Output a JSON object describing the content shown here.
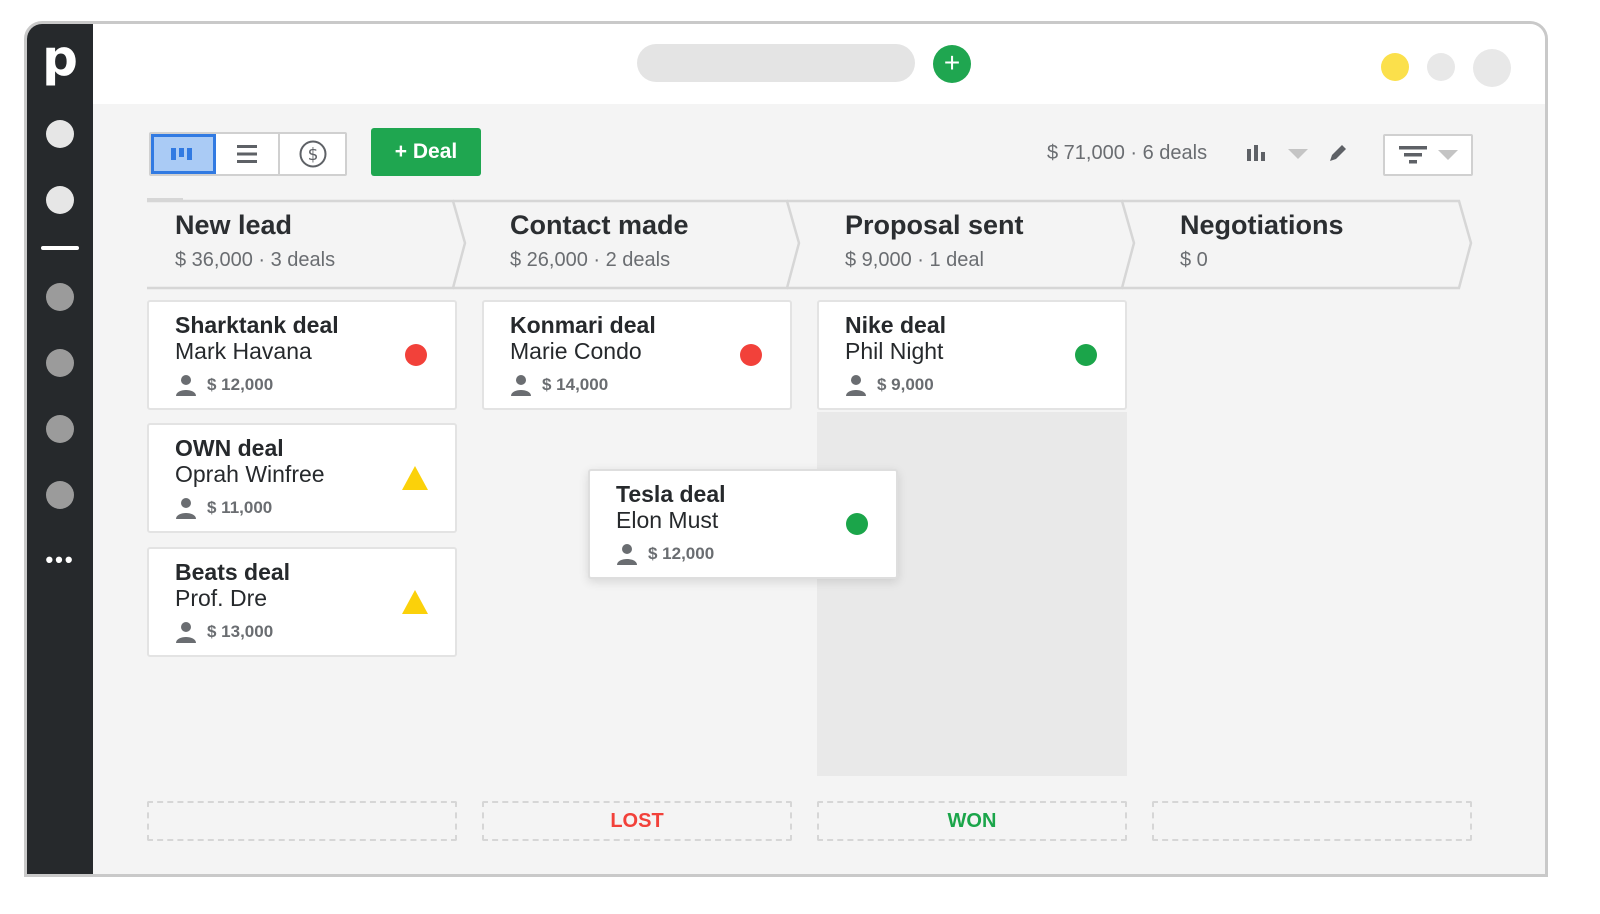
{
  "app": {
    "logo_letter": "p"
  },
  "sidebar": {
    "items": [
      "circle",
      "circle",
      "divider",
      "circle",
      "circle",
      "circle",
      "circle"
    ],
    "more_label": "•••"
  },
  "topbar": {
    "add_label": "+",
    "status_colors": [
      "#fbe04b",
      "#e8e8e8",
      "#e8e8e8"
    ]
  },
  "toolbar": {
    "views": [
      {
        "icon": "pipeline-icon",
        "active": true
      },
      {
        "icon": "list-icon",
        "active": false
      },
      {
        "icon": "dollar-icon",
        "active": false
      }
    ],
    "add_deal_label": "+ Deal",
    "summary": "$ 71,000 · 6 deals"
  },
  "stages": [
    {
      "name": "New lead",
      "summary": "$ 36,000 · 3 deals"
    },
    {
      "name": "Contact made",
      "summary": "$ 26,000 · 2 deals"
    },
    {
      "name": "Proposal sent",
      "summary": "$ 9,000 · 1 deal"
    },
    {
      "name": "Negotiations",
      "summary": "$ 0"
    }
  ],
  "deals": [
    {
      "title": "Sharktank deal",
      "person": "Mark Havana",
      "value": "$ 12,000",
      "status": "red"
    },
    {
      "title": "OWN deal",
      "person": "Oprah Winfree",
      "value": "$ 11,000",
      "status": "warning"
    },
    {
      "title": "Beats deal",
      "person": "Prof. Dre",
      "value": "$ 13,000",
      "status": "warning"
    },
    {
      "title": "Konmari deal",
      "person": "Marie Condo",
      "value": "$ 14,000",
      "status": "red"
    },
    {
      "title": "Nike deal",
      "person": "Phil Night",
      "value": "$ 9,000",
      "status": "green"
    },
    {
      "title": "Tesla deal",
      "person": "Elon Must",
      "value": "$ 12,000",
      "status": "green"
    }
  ],
  "drop_zones": {
    "lost": "LOST",
    "won": "WON"
  },
  "colors": {
    "brand_green": "#1fa650",
    "active_blue": "#317ae2",
    "lost_red": "#f2413a",
    "won_green": "#1ba54a",
    "warning_yellow": "#fbd10a",
    "sidebar_dark": "#26292c"
  }
}
